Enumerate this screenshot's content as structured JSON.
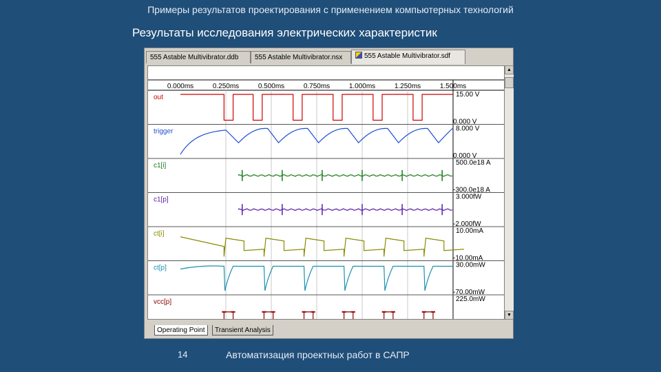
{
  "slide": {
    "title": "Примеры результатов проектирования с применением компьютерных технологий",
    "subtitle": "Результаты исследования электрических характеристик",
    "page_number": "14",
    "footer": "Автоматизация проектных работ в САПР"
  },
  "window": {
    "tabs": [
      {
        "label": "555 Astable Multivibrator.ddb",
        "active": false
      },
      {
        "label": "555 Astable Multivibrator.nsx",
        "active": false
      },
      {
        "label": "555 Astable Multivibrator.sdf",
        "active": true
      }
    ],
    "bottom_tabs": [
      {
        "label": "Operating Point",
        "active": true
      },
      {
        "label": "Transient Analysis",
        "active": false
      }
    ],
    "scroll_up_glyph": "▲",
    "scroll_down_glyph": "▼"
  },
  "time_axis": {
    "ticks": [
      "0.000ms",
      "0.250ms",
      "0.500ms",
      "0.750ms",
      "1.000ms",
      "1.250ms",
      "1.500ms"
    ],
    "range_ms": [
      0,
      1.5
    ]
  },
  "traces": [
    {
      "name": "out",
      "color": "#cc0000",
      "max_label": "15.00 V",
      "min_label": "0.000 V",
      "shape": "square"
    },
    {
      "name": "trigger",
      "color": "#1f4fd0",
      "max_label": "8.000 V",
      "min_label": "0.000 V",
      "shape": "triangle"
    },
    {
      "name": "c1[i]",
      "color": "#1a7a1a",
      "max_label": "500.0e18 A",
      "min_label": "-300.0e18 A",
      "shape": "spikes"
    },
    {
      "name": "c1[p]",
      "color": "#5a1aa8",
      "max_label": "3.000fW",
      "min_label": "-2.000fW",
      "shape": "spikes"
    },
    {
      "name": "ct[i]",
      "color": "#8a8a00",
      "max_label": "10.00mA",
      "min_label": "-10.00mA",
      "shape": "sawtooth"
    },
    {
      "name": "ct[p]",
      "color": "#1a90b0",
      "max_label": "30.00mW",
      "min_label": "-70.00mW",
      "shape": "dips"
    },
    {
      "name": "vcc[p]",
      "color": "#8b0000",
      "max_label": "225.0mW",
      "min_label": "",
      "shape": "pulses"
    }
  ],
  "colors": {
    "background": "#1f4e79",
    "window": "#d4d0c8"
  }
}
